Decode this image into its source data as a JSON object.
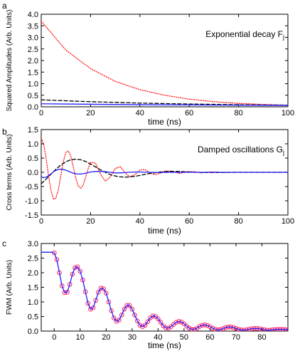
{
  "chart_data": [
    {
      "panel": "a",
      "type": "line",
      "annotation": "Exponential decay",
      "annotation_symbol": "F",
      "annotation_subscript": "j",
      "xlabel": "time (ns)",
      "ylabel": "Squared Amplitudes (Arb. Units)",
      "xlim": [
        0,
        100
      ],
      "ylim": [
        0,
        4.0
      ],
      "xticks": [
        0,
        20,
        40,
        60,
        80,
        100
      ],
      "yticks": [
        0.0,
        0.5,
        1.0,
        1.5,
        2.0,
        2.5,
        3.0,
        3.5,
        4.0
      ],
      "series": [
        {
          "color": "#ff2020",
          "style": "dotted",
          "x": [
            0,
            10,
            20,
            30,
            40,
            50,
            60,
            70,
            80,
            90,
            100
          ],
          "y": [
            3.7,
            2.45,
            1.65,
            1.1,
            0.74,
            0.5,
            0.33,
            0.22,
            0.15,
            0.1,
            0.07
          ]
        },
        {
          "color": "#000000",
          "style": "dashed",
          "x": [
            0,
            20,
            40,
            60,
            80,
            100
          ],
          "y": [
            0.3,
            0.22,
            0.16,
            0.12,
            0.09,
            0.07
          ]
        },
        {
          "color": "#2020ff",
          "style": "solid",
          "x": [
            0,
            20,
            40,
            60,
            80,
            100
          ],
          "y": [
            0.13,
            0.11,
            0.09,
            0.08,
            0.07,
            0.06
          ]
        }
      ]
    },
    {
      "panel": "b",
      "type": "line",
      "annotation": "Damped oscillations",
      "annotation_symbol": "G",
      "annotation_subscript": "j",
      "xlabel": "time (ns)",
      "ylabel": "Cross terms (Arb. Units)",
      "xlim": [
        0,
        100
      ],
      "ylim": [
        -1.5,
        1.5
      ],
      "xticks": [
        0,
        20,
        40,
        60,
        80,
        100
      ],
      "yticks": [
        -1.5,
        -1.0,
        -0.5,
        0.0,
        0.5,
        1.0,
        1.5
      ],
      "series": [
        {
          "color": "#ff2020",
          "style": "dotted",
          "x": [
            0,
            1,
            2,
            3,
            4,
            5,
            6,
            7,
            8,
            9,
            10,
            11,
            12,
            13,
            14,
            15,
            16,
            17,
            18,
            19,
            20,
            22,
            24,
            26,
            28,
            30,
            32,
            34,
            36,
            38,
            40,
            42,
            44,
            46,
            48,
            50,
            53,
            56,
            59,
            62,
            65,
            68,
            71,
            74,
            77,
            80,
            85,
            90,
            95,
            100
          ],
          "y": [
            1.2,
            0.98,
            0.48,
            -0.14,
            -0.66,
            -0.95,
            -0.9,
            -0.58,
            -0.09,
            0.39,
            0.7,
            0.75,
            0.56,
            0.19,
            -0.2,
            -0.48,
            -0.56,
            -0.45,
            -0.18,
            0.12,
            0.35,
            0.32,
            -0.06,
            -0.31,
            -0.16,
            0.13,
            0.2,
            -0.02,
            -0.16,
            -0.08,
            0.08,
            0.1,
            -0.02,
            -0.08,
            -0.04,
            0.04,
            0.04,
            -0.04,
            0.02,
            0.02,
            -0.02,
            0.01,
            0.01,
            -0.01,
            0.0,
            0.0,
            0.0,
            0.0,
            0.0,
            0.0
          ]
        },
        {
          "color": "#000000",
          "style": "dashed",
          "x": [
            0,
            2,
            4,
            6,
            8,
            10,
            12,
            14,
            16,
            18,
            20,
            22,
            24,
            26,
            28,
            30,
            32,
            34,
            36,
            38,
            40,
            44,
            48,
            52,
            56,
            60,
            66,
            72,
            80,
            90,
            100
          ],
          "y": [
            -0.4,
            -0.24,
            -0.06,
            0.11,
            0.26,
            0.37,
            0.44,
            0.46,
            0.44,
            0.38,
            0.29,
            0.19,
            0.09,
            0.0,
            -0.08,
            -0.13,
            -0.16,
            -0.17,
            -0.16,
            -0.14,
            -0.11,
            -0.04,
            0.01,
            0.03,
            0.03,
            0.01,
            -0.01,
            -0.01,
            0.0,
            0.0,
            0.0
          ]
        },
        {
          "color": "#2020ff",
          "style": "solid",
          "x": [
            0,
            1,
            2,
            3,
            4,
            5,
            6,
            7,
            8,
            9,
            10,
            11,
            12,
            13,
            14,
            15,
            16,
            17,
            18,
            19,
            20,
            22,
            24,
            26,
            28,
            30,
            32,
            34,
            36,
            38,
            40,
            44,
            48,
            52,
            56,
            60,
            64,
            68,
            72,
            80,
            90,
            100
          ],
          "y": [
            -0.15,
            -0.19,
            -0.17,
            -0.12,
            -0.05,
            0.02,
            0.07,
            0.1,
            0.11,
            0.1,
            0.07,
            0.04,
            0.0,
            -0.03,
            -0.05,
            -0.06,
            -0.06,
            -0.05,
            -0.03,
            -0.01,
            0.01,
            0.03,
            0.03,
            0.02,
            0.0,
            -0.02,
            -0.02,
            -0.01,
            0.0,
            0.01,
            0.01,
            0.0,
            -0.01,
            0.0,
            0.0,
            0.0,
            0.0,
            0.0,
            0.0,
            0.0,
            0.0,
            0.0
          ]
        }
      ]
    },
    {
      "panel": "c",
      "type": "line",
      "xlabel": "time (ns)",
      "ylabel": "FWM (Arb. Units)",
      "xlim": [
        -5,
        90
      ],
      "ylim": [
        0,
        3.0
      ],
      "xticks": [
        0,
        10,
        20,
        30,
        40,
        50,
        60,
        70,
        80
      ],
      "yticks": [
        0.0,
        0.5,
        1.0,
        1.5,
        2.0,
        2.5,
        3.0
      ],
      "series": [
        {
          "color": "#ff2060",
          "style": "markers",
          "x": [
            0,
            1,
            2,
            3,
            4,
            5,
            6,
            7,
            8,
            9,
            10,
            11,
            12,
            13,
            14,
            15,
            16,
            17,
            18,
            19,
            20,
            21,
            22,
            23,
            24,
            25,
            26,
            27,
            28,
            29,
            30,
            31,
            32,
            33,
            34,
            35,
            36,
            37,
            38,
            39,
            40,
            41,
            42,
            43,
            44,
            45,
            46,
            47,
            48,
            49,
            50,
            51,
            52,
            53,
            54,
            55,
            56,
            57,
            58,
            59,
            60,
            61,
            62,
            63,
            64,
            65,
            66,
            67,
            68,
            69,
            70,
            71,
            72,
            73,
            74,
            75,
            76,
            77,
            78,
            79,
            80,
            81,
            82,
            83,
            84,
            85,
            86,
            87,
            88,
            89,
            90
          ],
          "y": [
            2.68,
            2.45,
            2.0,
            1.55,
            1.32,
            1.33,
            1.6,
            1.95,
            2.17,
            2.2,
            2.05,
            1.75,
            1.35,
            0.95,
            0.75,
            0.8,
            1.05,
            1.33,
            1.47,
            1.45,
            1.3,
            1.0,
            0.7,
            0.45,
            0.33,
            0.38,
            0.55,
            0.75,
            0.88,
            0.88,
            0.75,
            0.55,
            0.35,
            0.2,
            0.15,
            0.2,
            0.32,
            0.45,
            0.52,
            0.5,
            0.42,
            0.3,
            0.18,
            0.11,
            0.1,
            0.15,
            0.23,
            0.3,
            0.33,
            0.31,
            0.25,
            0.17,
            0.1,
            0.06,
            0.06,
            0.1,
            0.16,
            0.2,
            0.21,
            0.19,
            0.15,
            0.1,
            0.06,
            0.04,
            0.05,
            0.08,
            0.12,
            0.14,
            0.14,
            0.12,
            0.09,
            0.06,
            0.04,
            0.03,
            0.04,
            0.06,
            0.08,
            0.09,
            0.09,
            0.08,
            0.06,
            0.04,
            0.03,
            0.03,
            0.04,
            0.05,
            0.06,
            0.06,
            0.06,
            0.05,
            0.04
          ]
        },
        {
          "color": "#2020ff",
          "style": "solid",
          "x": [
            -5,
            -4,
            -3,
            -2,
            -1,
            0,
            1,
            2,
            3,
            4,
            5,
            6,
            7,
            8,
            9,
            10,
            11,
            12,
            13,
            14,
            15,
            16,
            17,
            18,
            19,
            20,
            21,
            22,
            23,
            24,
            25,
            26,
            27,
            28,
            29,
            30,
            31,
            32,
            33,
            34,
            35,
            36,
            37,
            38,
            39,
            40,
            41,
            42,
            43,
            44,
            45,
            46,
            47,
            48,
            49,
            50,
            51,
            52,
            53,
            54,
            55,
            56,
            57,
            58,
            59,
            60,
            61,
            62,
            63,
            64,
            65,
            66,
            67,
            68,
            69,
            70,
            71,
            72,
            73,
            74,
            75,
            76,
            77,
            78,
            79,
            80,
            81,
            82,
            83,
            84,
            85,
            86,
            87,
            88,
            89,
            90
          ],
          "y": [
            2.7,
            2.7,
            2.7,
            2.7,
            2.7,
            2.68,
            2.45,
            2.0,
            1.55,
            1.32,
            1.33,
            1.6,
            1.95,
            2.17,
            2.2,
            2.05,
            1.75,
            1.35,
            0.95,
            0.75,
            0.8,
            1.05,
            1.33,
            1.47,
            1.45,
            1.3,
            1.0,
            0.7,
            0.45,
            0.33,
            0.38,
            0.55,
            0.75,
            0.88,
            0.88,
            0.75,
            0.55,
            0.35,
            0.2,
            0.15,
            0.2,
            0.32,
            0.45,
            0.52,
            0.5,
            0.42,
            0.3,
            0.18,
            0.11,
            0.1,
            0.15,
            0.23,
            0.3,
            0.33,
            0.31,
            0.25,
            0.17,
            0.1,
            0.06,
            0.06,
            0.1,
            0.16,
            0.2,
            0.21,
            0.19,
            0.15,
            0.1,
            0.06,
            0.04,
            0.05,
            0.08,
            0.12,
            0.14,
            0.14,
            0.12,
            0.09,
            0.06,
            0.04,
            0.03,
            0.04,
            0.06,
            0.08,
            0.09,
            0.09,
            0.08,
            0.06,
            0.04,
            0.03,
            0.03,
            0.04,
            0.05,
            0.06,
            0.06,
            0.06,
            0.05,
            0.04
          ]
        }
      ]
    }
  ]
}
